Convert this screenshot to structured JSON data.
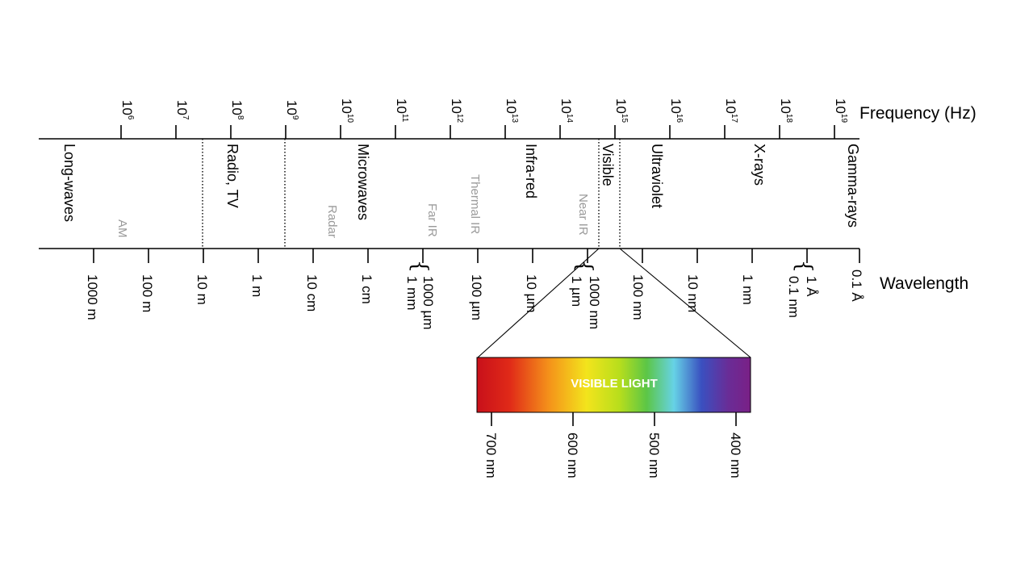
{
  "frequency_axis": {
    "title": "Frequency (Hz)",
    "ticks": [
      {
        "base": "10",
        "exp": "6"
      },
      {
        "base": "10",
        "exp": "7"
      },
      {
        "base": "10",
        "exp": "8"
      },
      {
        "base": "10",
        "exp": "9"
      },
      {
        "base": "10",
        "exp": "10"
      },
      {
        "base": "10",
        "exp": "11"
      },
      {
        "base": "10",
        "exp": "12"
      },
      {
        "base": "10",
        "exp": "13"
      },
      {
        "base": "10",
        "exp": "14"
      },
      {
        "base": "10",
        "exp": "15"
      },
      {
        "base": "10",
        "exp": "16"
      },
      {
        "base": "10",
        "exp": "17"
      },
      {
        "base": "10",
        "exp": "18"
      },
      {
        "base": "10",
        "exp": "19"
      }
    ]
  },
  "wavelength_axis": {
    "title": "Wavelength",
    "ticks": [
      "1000 m",
      "100 m",
      "10 m",
      "1 m",
      "10 cm",
      "1 cm",
      "1000 µm",
      "1 mm",
      "100 µm",
      "10 µm",
      "1000 nm",
      "1 µm",
      "100 nm",
      "10 nm",
      "1 nm",
      "1 Å",
      "0.1 nm",
      "0.1 Å"
    ]
  },
  "bands": {
    "long_waves": "Long-waves",
    "radio_tv": "Radio, TV",
    "microwaves": "Microwaves",
    "infra_red": "Infra-red",
    "visible": "Visible",
    "ultraviolet": "Ultraviolet",
    "x_rays": "X-rays",
    "gamma_rays": "Gamma-rays"
  },
  "sub_bands": {
    "am": "AM",
    "radar": "Radar",
    "far_ir": "Far IR",
    "thermal_ir": "Thermal IR",
    "near_ir": "Near IR"
  },
  "visible_light": {
    "title": "VISIBLE LIGHT",
    "ticks": [
      "700 nm",
      "600 nm",
      "500 nm",
      "400 nm"
    ]
  },
  "colors": {
    "line": "#000000",
    "sub_band_text": "#9a9a9a",
    "spectrum": [
      "#c8101a",
      "#e8401a",
      "#f6a21a",
      "#f3e81c",
      "#b8e01c",
      "#5cc646",
      "#3aa6d8",
      "#3a46b8",
      "#6a2a92",
      "#7a2086"
    ]
  }
}
